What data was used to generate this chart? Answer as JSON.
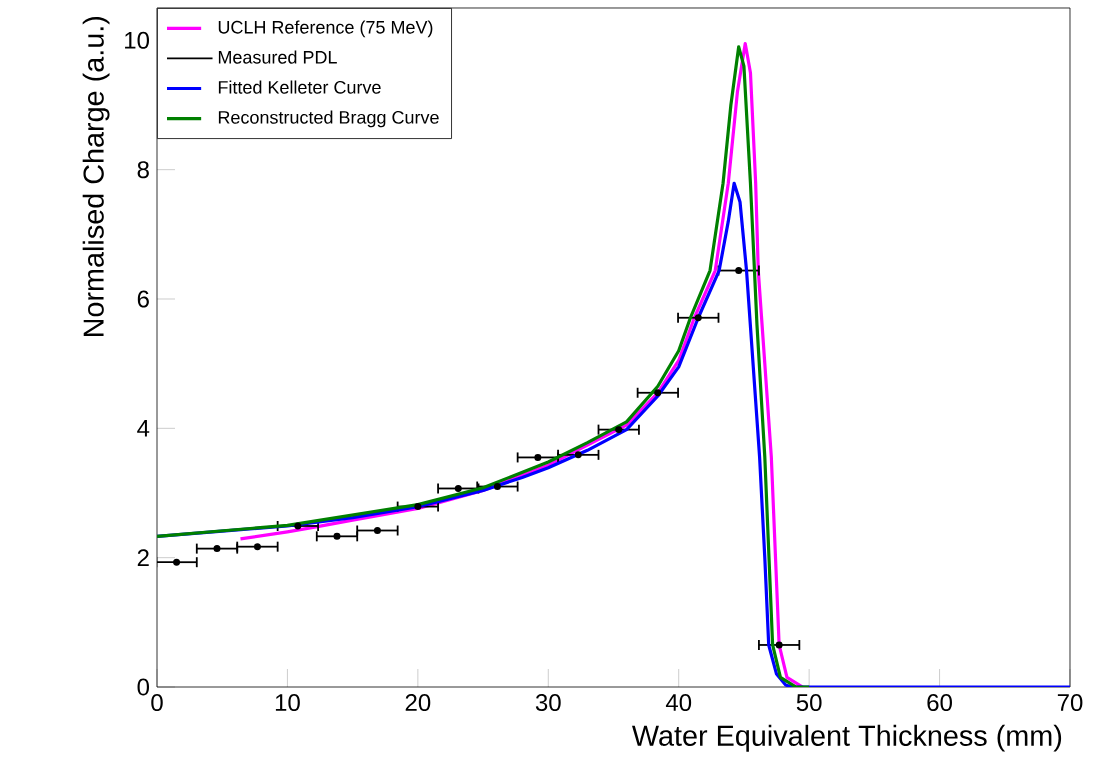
{
  "chart_data": {
    "type": "line",
    "xlabel": "Water Equivalent Thickness (mm)",
    "ylabel": "Normalised Charge (a.u.)",
    "xlim": [
      0,
      70
    ],
    "ylim": [
      0,
      10.5
    ],
    "xticks": [
      0,
      10,
      20,
      30,
      40,
      50,
      60,
      70
    ],
    "yticks": [
      0,
      2,
      4,
      6,
      8,
      10
    ],
    "grid": false,
    "legend": "top left",
    "series": [
      {
        "name": "UCLH Reference (75 MeV)",
        "color": "#ff00ff",
        "x": [
          6.4,
          10,
          12.3,
          15,
          20,
          25,
          30,
          33,
          36,
          38.4,
          40,
          41.2,
          42.8,
          43.8,
          44.5,
          45.1,
          45.5,
          45.9,
          46.1,
          46.6,
          47.1,
          47.7,
          48.3,
          49.5
        ],
        "values": [
          2.29,
          2.4,
          2.48,
          2.58,
          2.76,
          3.04,
          3.43,
          3.74,
          4.05,
          4.55,
          5.05,
          5.71,
          6.44,
          7.79,
          9.2,
          9.95,
          9.5,
          7.79,
          6.44,
          5.0,
          3.56,
          0.65,
          0.15,
          0
        ]
      },
      {
        "name": "Measured PDL",
        "type": "scatter",
        "marker": "circle",
        "color": "#000000",
        "x": [
          1.5,
          4.6,
          7.7,
          10.8,
          13.8,
          16.9,
          20.0,
          23.1,
          26.1,
          29.2,
          32.3,
          35.4,
          38.4,
          41.5,
          44.6,
          47.7
        ],
        "values": [
          1.93,
          2.14,
          2.17,
          2.49,
          2.33,
          2.42,
          2.79,
          3.07,
          3.1,
          3.55,
          3.59,
          3.98,
          4.55,
          5.71,
          6.44,
          0.65
        ],
        "xerrors": [
          1.55,
          1.55,
          1.55,
          1.55,
          1.55,
          1.55,
          1.55,
          1.55,
          1.55,
          1.55,
          1.55,
          1.55,
          1.55,
          1.55,
          1.55,
          1.55
        ]
      },
      {
        "name": "Fitted Kelleter Curve",
        "color": "#0000ff",
        "x": [
          0,
          5,
          10,
          15,
          20,
          25,
          28,
          30,
          33,
          36,
          38.4,
          40,
          41.5,
          43.1,
          43.8,
          44.25,
          44.7,
          45.2,
          45.7,
          46.2,
          46.6,
          46.9,
          47.5,
          48.2,
          48.7,
          70
        ],
        "values": [
          2.33,
          2.41,
          2.49,
          2.62,
          2.79,
          3.04,
          3.24,
          3.39,
          3.66,
          3.98,
          4.5,
          4.95,
          5.71,
          6.44,
          7.2,
          7.79,
          7.5,
          6.44,
          5.0,
          3.56,
          2.0,
          0.65,
          0.2,
          0.03,
          0,
          0
        ]
      },
      {
        "name": "Reconstructed Bragg Curve",
        "color": "#008000",
        "x": [
          0,
          10,
          20,
          25,
          30,
          33,
          36,
          38.4,
          40,
          40.9,
          42.4,
          43.4,
          44.0,
          44.6,
          45.0,
          45.5,
          46.0,
          46.6,
          47.2,
          47.8,
          49,
          50
        ],
        "values": [
          2.33,
          2.5,
          2.82,
          3.08,
          3.48,
          3.78,
          4.1,
          4.65,
          5.2,
          5.71,
          6.44,
          7.79,
          9.0,
          9.9,
          9.6,
          7.79,
          5.6,
          3.56,
          0.65,
          0.15,
          0,
          0
        ]
      }
    ]
  }
}
